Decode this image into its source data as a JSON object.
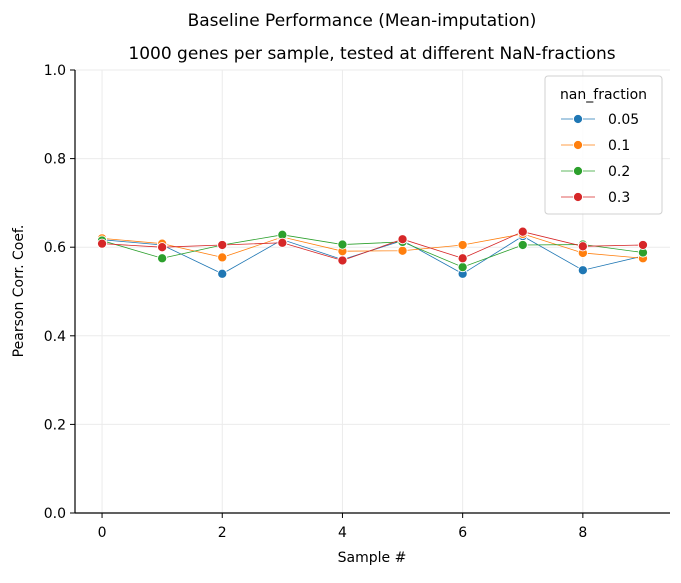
{
  "suptitle": "Baseline Performance (Mean-imputation)",
  "chart_data": {
    "type": "line",
    "title": "1000 genes per sample, tested at different NaN-fractions",
    "xlabel": "Sample #",
    "ylabel": "Pearson Corr. Coef.",
    "xlim": [
      -0.45,
      9.45
    ],
    "ylim": [
      0.0,
      1.0
    ],
    "xticks": [
      0,
      2,
      4,
      6,
      8
    ],
    "xtick_labels": [
      "0",
      "2",
      "4",
      "6",
      "8"
    ],
    "yticks": [
      0.0,
      0.2,
      0.4,
      0.6,
      0.8,
      1.0
    ],
    "ytick_labels": [
      "0.0",
      "0.2",
      "0.4",
      "0.6",
      "0.8",
      "1.0"
    ],
    "grid": true,
    "legend": {
      "title": "nan_fraction",
      "placement": "top-right"
    },
    "x": [
      0,
      1,
      2,
      3,
      4,
      5,
      6,
      7,
      8,
      9
    ],
    "series": [
      {
        "name": "0.05",
        "color": "#1f77b4",
        "values": [
          0.617,
          0.605,
          0.54,
          0.617,
          0.572,
          0.615,
          0.54,
          0.625,
          0.548,
          0.58
        ]
      },
      {
        "name": "0.1",
        "color": "#ff7f0e",
        "values": [
          0.62,
          0.608,
          0.577,
          0.623,
          0.591,
          0.592,
          0.605,
          0.63,
          0.587,
          0.575
        ]
      },
      {
        "name": "0.2",
        "color": "#2ca02c",
        "values": [
          0.615,
          0.575,
          0.605,
          0.628,
          0.606,
          0.612,
          0.555,
          0.605,
          0.606,
          0.588
        ]
      },
      {
        "name": "0.3",
        "color": "#d62728",
        "values": [
          0.608,
          0.6,
          0.605,
          0.61,
          0.57,
          0.618,
          0.575,
          0.635,
          0.602,
          0.605
        ]
      }
    ]
  }
}
